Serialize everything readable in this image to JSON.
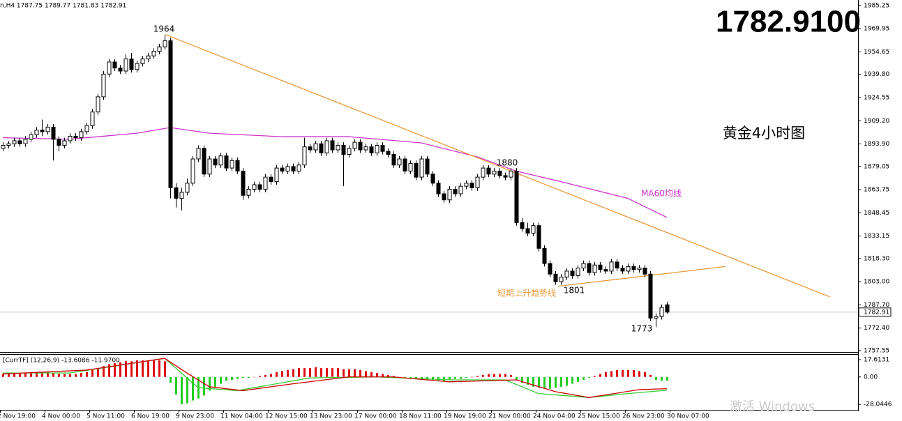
{
  "chart_data": {
    "type": "candlestick",
    "header": "n,H4  1787.75 1789.77 1781.83 1782.91",
    "big_price": "1782.9100",
    "big_price_color": "#7ee619",
    "title": "黄金4小时图",
    "up_color": "#ffffff",
    "down_color": "#000000",
    "candles": [
      [
        1891,
        1895,
        1889,
        1893
      ],
      [
        1893,
        1896,
        1891,
        1894
      ],
      [
        1894,
        1898,
        1892,
        1896
      ],
      [
        1896,
        1898,
        1892,
        1894
      ],
      [
        1894,
        1899,
        1892,
        1897
      ],
      [
        1897,
        1902,
        1895,
        1900
      ],
      [
        1900,
        1905,
        1898,
        1903
      ],
      [
        1903,
        1910,
        1899,
        1902
      ],
      [
        1902,
        1907,
        1900,
        1905
      ],
      [
        1905,
        1907,
        1883,
        1897
      ],
      [
        1897,
        1899,
        1889,
        1893
      ],
      [
        1893,
        1898,
        1891,
        1896
      ],
      [
        1896,
        1901,
        1894,
        1899
      ],
      [
        1899,
        1901,
        1896,
        1898
      ],
      [
        1898,
        1904,
        1896,
        1902
      ],
      [
        1902,
        1908,
        1900,
        1906
      ],
      [
        1906,
        1917,
        1904,
        1915
      ],
      [
        1915,
        1927,
        1913,
        1925
      ],
      [
        1925,
        1942,
        1923,
        1940
      ],
      [
        1940,
        1950,
        1938,
        1948
      ],
      [
        1948,
        1950,
        1942,
        1944
      ],
      [
        1944,
        1946,
        1940,
        1942
      ],
      [
        1942,
        1953,
        1940,
        1950
      ],
      [
        1950,
        1954,
        1941,
        1943
      ],
      [
        1943,
        1949,
        1941,
        1947
      ],
      [
        1947,
        1952,
        1945,
        1950
      ],
      [
        1950,
        1954,
        1948,
        1952
      ],
      [
        1952,
        1957,
        1950,
        1955
      ],
      [
        1955,
        1960,
        1953,
        1958
      ],
      [
        1958,
        1966,
        1956,
        1962
      ],
      [
        1962,
        1964,
        1858,
        1865
      ],
      [
        1865,
        1868,
        1852,
        1858
      ],
      [
        1858,
        1865,
        1850,
        1862
      ],
      [
        1862,
        1871,
        1860,
        1868
      ],
      [
        1868,
        1886,
        1866,
        1884
      ],
      [
        1884,
        1893,
        1882,
        1891
      ],
      [
        1891,
        1893,
        1872,
        1874
      ],
      [
        1874,
        1886,
        1872,
        1884
      ],
      [
        1884,
        1886,
        1878,
        1880
      ],
      [
        1880,
        1888,
        1878,
        1886
      ],
      [
        1886,
        1888,
        1876,
        1878
      ],
      [
        1878,
        1885,
        1876,
        1883
      ],
      [
        1883,
        1885,
        1874,
        1876
      ],
      [
        1876,
        1878,
        1857,
        1860
      ],
      [
        1860,
        1866,
        1858,
        1864
      ],
      [
        1864,
        1869,
        1862,
        1867
      ],
      [
        1867,
        1869,
        1862,
        1864
      ],
      [
        1864,
        1874,
        1862,
        1872
      ],
      [
        1872,
        1874,
        1867,
        1869
      ],
      [
        1869,
        1880,
        1867,
        1878
      ],
      [
        1878,
        1880,
        1874,
        1876
      ],
      [
        1876,
        1881,
        1874,
        1879
      ],
      [
        1879,
        1881,
        1874,
        1876
      ],
      [
        1876,
        1882,
        1874,
        1880
      ],
      [
        1880,
        1898,
        1878,
        1892
      ],
      [
        1892,
        1894,
        1888,
        1890
      ],
      [
        1890,
        1896,
        1888,
        1894
      ],
      [
        1894,
        1896,
        1886,
        1888
      ],
      [
        1888,
        1898,
        1886,
        1896
      ],
      [
        1896,
        1898,
        1888,
        1890
      ],
      [
        1890,
        1895,
        1888,
        1893
      ],
      [
        1893,
        1895,
        1866,
        1887
      ],
      [
        1887,
        1893,
        1885,
        1891
      ],
      [
        1891,
        1897,
        1889,
        1895
      ],
      [
        1895,
        1897,
        1888,
        1890
      ],
      [
        1890,
        1894,
        1888,
        1892
      ],
      [
        1892,
        1894,
        1886,
        1888
      ],
      [
        1888,
        1895,
        1886,
        1893
      ],
      [
        1893,
        1895,
        1887,
        1889
      ],
      [
        1889,
        1891,
        1885,
        1887
      ],
      [
        1887,
        1889,
        1878,
        1880
      ],
      [
        1880,
        1886,
        1878,
        1884
      ],
      [
        1884,
        1886,
        1874,
        1876
      ],
      [
        1876,
        1883,
        1874,
        1881
      ],
      [
        1881,
        1883,
        1870,
        1872
      ],
      [
        1872,
        1886,
        1870,
        1884
      ],
      [
        1884,
        1886,
        1872,
        1874
      ],
      [
        1874,
        1876,
        1866,
        1868
      ],
      [
        1868,
        1870,
        1859,
        1861
      ],
      [
        1861,
        1863,
        1855,
        1857
      ],
      [
        1857,
        1866,
        1855,
        1864
      ],
      [
        1864,
        1866,
        1859,
        1861
      ],
      [
        1861,
        1868,
        1859,
        1866
      ],
      [
        1866,
        1870,
        1864,
        1868
      ],
      [
        1868,
        1870,
        1863,
        1865
      ],
      [
        1865,
        1874,
        1863,
        1872
      ],
      [
        1872,
        1880,
        1870,
        1878
      ],
      [
        1878,
        1880,
        1872,
        1874
      ],
      [
        1874,
        1878,
        1872,
        1876
      ],
      [
        1876,
        1878,
        1871,
        1873
      ],
      [
        1873,
        1875,
        1870,
        1872
      ],
      [
        1872,
        1878,
        1870,
        1876
      ],
      [
        1876,
        1878,
        1840,
        1842
      ],
      [
        1842,
        1845,
        1836,
        1838
      ],
      [
        1838,
        1842,
        1833,
        1835
      ],
      [
        1835,
        1842,
        1833,
        1840
      ],
      [
        1840,
        1842,
        1823,
        1825
      ],
      [
        1825,
        1827,
        1813,
        1815
      ],
      [
        1815,
        1817,
        1806,
        1808
      ],
      [
        1808,
        1810,
        1801,
        1803
      ],
      [
        1803,
        1808,
        1801,
        1806
      ],
      [
        1806,
        1812,
        1804,
        1810
      ],
      [
        1810,
        1812,
        1805,
        1807
      ],
      [
        1807,
        1814,
        1805,
        1812
      ],
      [
        1812,
        1817,
        1810,
        1815
      ],
      [
        1815,
        1817,
        1807,
        1809
      ],
      [
        1809,
        1816,
        1807,
        1814
      ],
      [
        1814,
        1816,
        1809,
        1811
      ],
      [
        1811,
        1813,
        1808,
        1810
      ],
      [
        1810,
        1818,
        1808,
        1816
      ],
      [
        1816,
        1818,
        1810,
        1812
      ],
      [
        1812,
        1814,
        1808,
        1810
      ],
      [
        1810,
        1815,
        1808,
        1813
      ],
      [
        1813,
        1815,
        1809,
        1811
      ],
      [
        1811,
        1814,
        1809,
        1812
      ],
      [
        1812,
        1814,
        1806,
        1808
      ],
      [
        1808,
        1810,
        1777,
        1779
      ],
      [
        1779,
        1782,
        1773,
        1780
      ],
      [
        1780,
        1788,
        1778,
        1786
      ],
      [
        1787.75,
        1789.77,
        1781.83,
        1782.91
      ]
    ],
    "ma60": {
      "name": "MA60均线",
      "color": "#cc33cc",
      "x": [
        0,
        12,
        24,
        30,
        37,
        50,
        62,
        75,
        85,
        92,
        100,
        112,
        119
      ],
      "values": [
        1898,
        1897,
        1901,
        1904.7,
        1901,
        1898.7,
        1898.7,
        1894.6,
        1885.4,
        1876,
        1869,
        1858,
        1845.4
      ]
    },
    "trendlines": [
      {
        "color": "#e89a3c",
        "x": [
          29.2,
          148.2
        ],
        "values": [
          1966,
          1793
        ]
      },
      {
        "name": "短期上升趋势线",
        "color": "#e89a3c",
        "x": [
          99.5,
          129.5
        ],
        "values": [
          1800,
          1813
        ]
      }
    ],
    "annotations": [
      "1964",
      "1880",
      "1801",
      "1773"
    ],
    "last_price": 1782.91,
    "ylim": [
      1756.6,
      1988.9
    ],
    "yticks": [
      1985.25,
      1969.95,
      1954.65,
      {
        "value": 1939.8,
        "label": "1939.80"
      },
      1924.55,
      {
        "value": 1909.2,
        "label": "1909.20"
      },
      {
        "value": 1893.9,
        "label": "1893.90"
      },
      1879.05,
      1863.75,
      1848.45,
      1833.15,
      {
        "value": 1818.3,
        "label": "1818.30"
      },
      {
        "value": 1803,
        "label": "1803.00"
      },
      {
        "value": 1787.7,
        "label": "1787.70"
      },
      {
        "value": 1772.4,
        "label": "1772.40"
      },
      1757.55
    ],
    "time_labels": [
      "2 Nov 19:00",
      "4 Nov 00:00",
      "5 Nov 11:00",
      "6 Nov 19:00",
      "9 Nov 23:00",
      "11 Nov 04:00",
      "12 Nov 15:00",
      "13 Nov 23:00",
      "17 Nov 00:00",
      "18 Nov 11:00",
      "19 Nov 19:00",
      "21 Nov 00:00",
      "24 Nov 04:00",
      "25 Nov 15:00",
      "26 Nov 23:00",
      "30 Nov 07:00"
    ],
    "macd": {
      "label": "[CurrTF] (12,26,9) -13.6086 -11.9700",
      "ylim": [
        -33.6,
        22.6
      ],
      "yticks": [
        17.6131,
        {
          "value": 0,
          "label": "0.00"
        },
        -28.0446
      ],
      "pos_color": "#dd1111",
      "neg_color": "#22cc22",
      "histogram": [
        3,
        3,
        4,
        4,
        4,
        4,
        5,
        5,
        5,
        4,
        3,
        3,
        3,
        3,
        4,
        5,
        7,
        9,
        11,
        13,
        14,
        15,
        16,
        16,
        17,
        17,
        17,
        17,
        17,
        16,
        -6,
        -18,
        -28,
        -27,
        -24,
        -22,
        -19,
        -14,
        -11,
        -7,
        -4,
        -3,
        -2,
        -1,
        -1,
        0,
        1,
        2,
        3,
        5,
        6,
        7,
        8,
        9,
        9,
        9,
        10,
        9,
        9,
        9,
        9,
        8,
        8,
        8,
        7,
        6,
        5,
        4,
        3,
        2,
        1,
        0,
        -1,
        -2,
        -2,
        -3,
        -3,
        -3,
        -4,
        -4,
        -3,
        -2,
        -2,
        -1,
        0,
        1,
        2,
        3,
        3,
        3,
        3,
        2,
        -3,
        -6,
        -8,
        -10,
        -11,
        -12,
        -12,
        -11,
        -10,
        -9,
        -7,
        -5,
        -3,
        -1,
        1,
        3,
        5,
        6,
        7,
        7,
        7,
        7,
        6,
        5,
        2,
        -3,
        -4,
        -4
      ],
      "lines": [
        {
          "color": "#33cc33",
          "x": [
            0,
            12,
            29,
            35,
            42,
            55,
            67,
            80,
            90,
            96,
            105,
            112,
            119
          ],
          "values": [
            4,
            4,
            19,
            -11,
            -14,
            -1,
            0,
            -3,
            -3,
            -17,
            -21,
            -17,
            -13.6086
          ]
        },
        {
          "color": "#cc0000",
          "x": [
            0,
            15,
            29,
            33,
            37,
            43,
            52,
            62,
            70,
            80,
            92,
            99,
            105,
            114,
            119
          ],
          "values": [
            3,
            7,
            19,
            4,
            -10,
            -14,
            -7,
            0,
            0,
            -5,
            -3,
            -15,
            -21,
            -13,
            -11.97
          ]
        }
      ]
    },
    "watermark": "激活 Windows"
  }
}
